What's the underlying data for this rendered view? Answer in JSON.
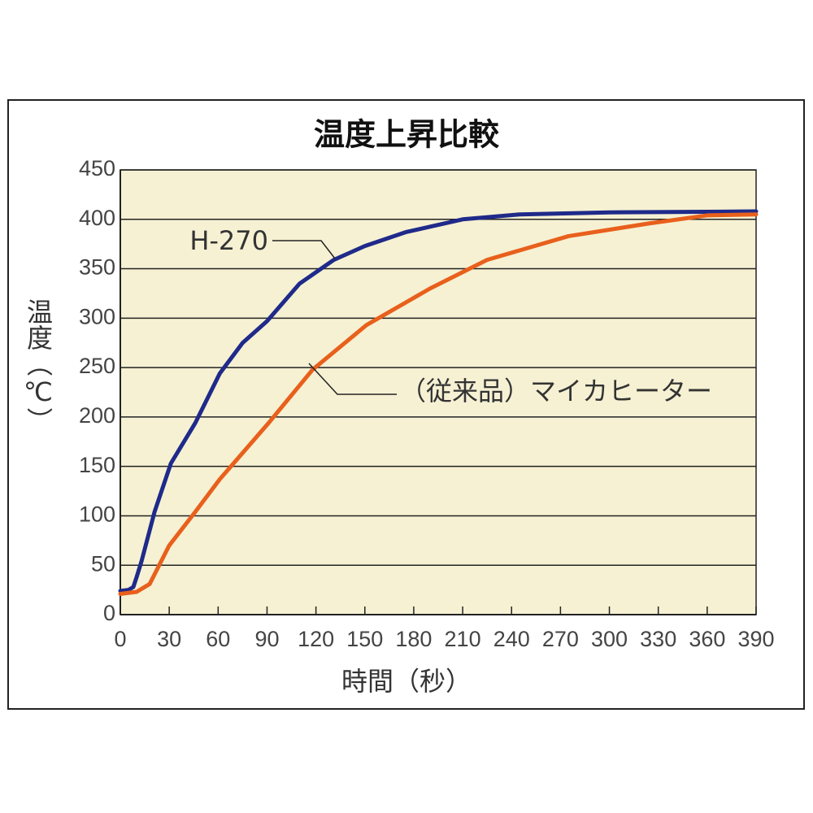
{
  "chart_data": {
    "type": "line",
    "title": "温度上昇比較",
    "xlabel": "時間（秒）",
    "ylabel": "温度（℃）",
    "xlim": [
      0,
      390
    ],
    "xticks": [
      0,
      30,
      60,
      90,
      120,
      150,
      180,
      210,
      240,
      270,
      300,
      330,
      360,
      390
    ],
    "ylim": [
      0,
      450
    ],
    "yticks": [
      0,
      50,
      100,
      150,
      200,
      250,
      300,
      350,
      400,
      450
    ],
    "grid": true,
    "series": [
      {
        "name": "H-270",
        "color": "#1f2a8a",
        "x": [
          0,
          5,
          8,
          10,
          13,
          21,
          31,
          46,
          61,
          75,
          90,
          110,
          131,
          150,
          175,
          210,
          245,
          300,
          390
        ],
        "values": [
          24,
          25,
          28,
          38,
          54,
          104,
          153,
          194,
          244,
          275,
          297,
          335,
          359,
          373,
          387,
          400,
          405,
          407,
          408
        ]
      },
      {
        "name": "（従来品）マイカヒーター",
        "color": "#e8601c",
        "x": [
          0,
          10,
          18,
          30,
          46,
          61,
          91,
          118,
          151,
          190,
          225,
          275,
          325,
          360,
          390
        ],
        "values": [
          21,
          23,
          31,
          70,
          104,
          137,
          194,
          248,
          293,
          330,
          359,
          383,
          396,
          404,
          405
        ]
      }
    ]
  }
}
